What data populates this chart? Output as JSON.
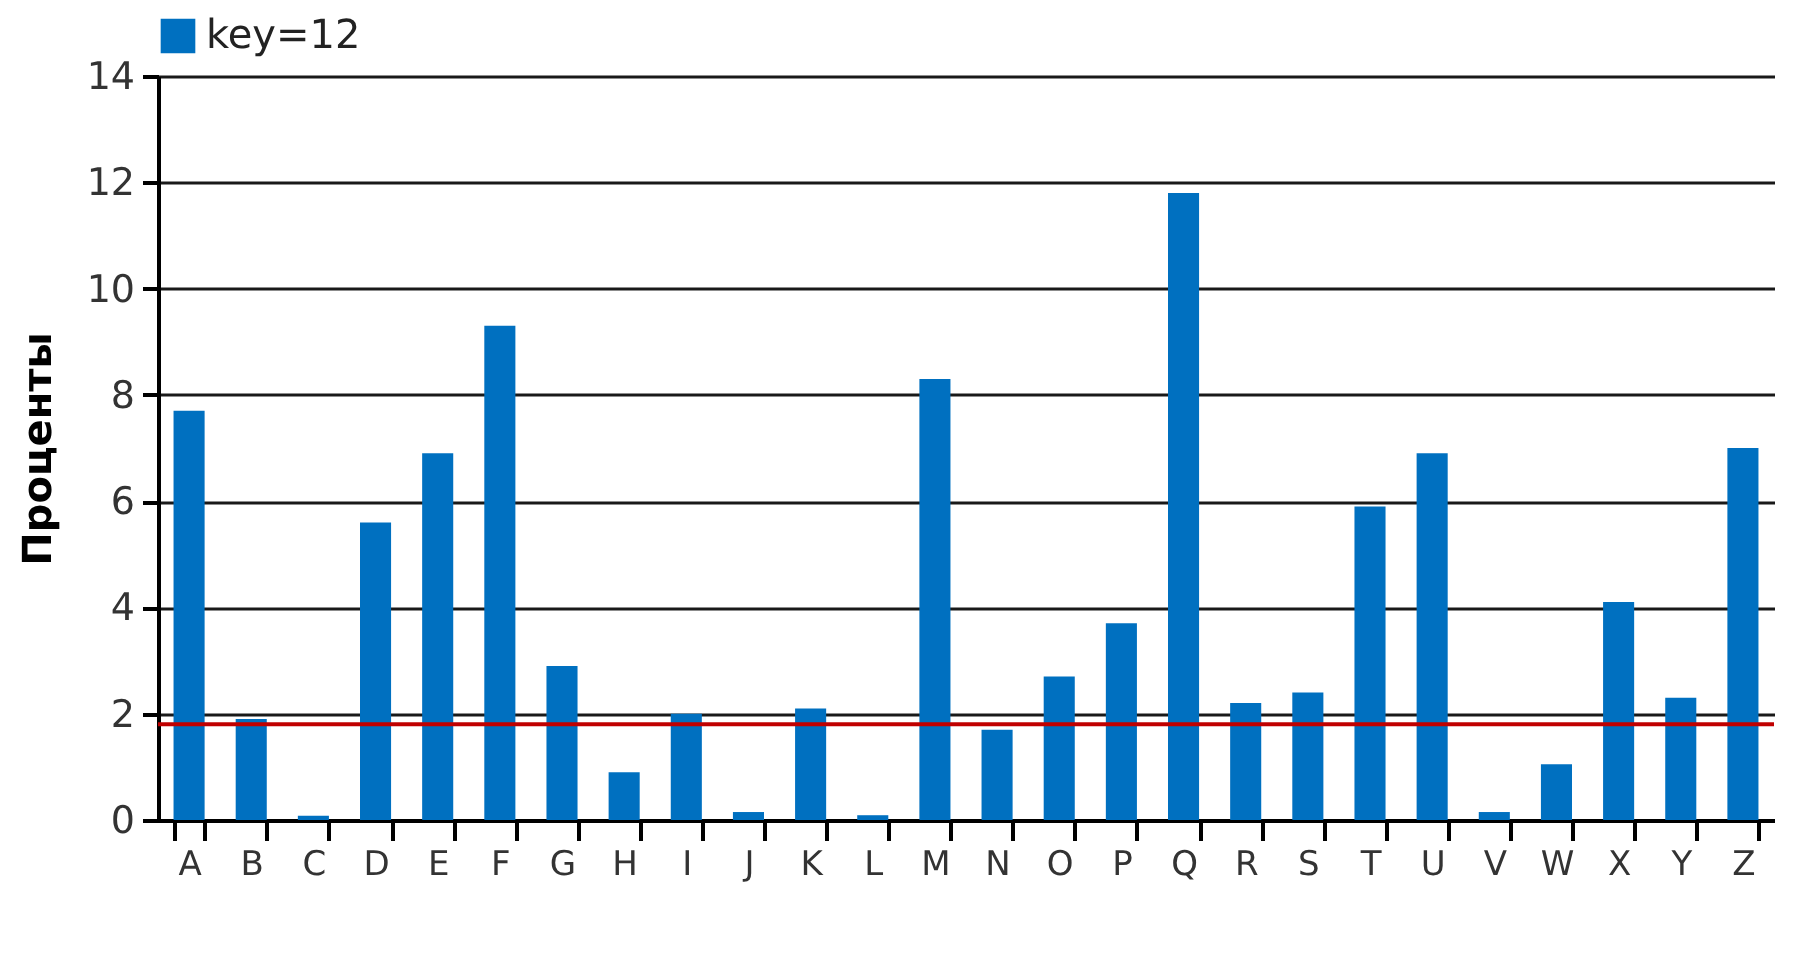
{
  "chart_data": {
    "type": "bar",
    "ylabel": "Проценты",
    "categories": [
      "A",
      "B",
      "C",
      "D",
      "E",
      "F",
      "G",
      "H",
      "I",
      "J",
      "K",
      "L",
      "M",
      "N",
      "O",
      "P",
      "Q",
      "R",
      "S",
      "T",
      "U",
      "V",
      "W",
      "X",
      "Y",
      "Z"
    ],
    "series": [
      {
        "name": "key=12",
        "color": "#0070c0",
        "values": [
          7.7,
          1.9,
          0.08,
          5.6,
          6.9,
          9.3,
          2.9,
          0.9,
          2.0,
          0.15,
          2.1,
          0.09,
          8.3,
          1.7,
          2.7,
          3.7,
          11.8,
          2.2,
          2.4,
          5.9,
          6.9,
          0.15,
          1.05,
          4.1,
          2.3,
          7.0
        ]
      }
    ],
    "ylim": [
      0,
      14
    ],
    "yticks": [
      0,
      2,
      4,
      6,
      8,
      10,
      12,
      14
    ],
    "grid": "y",
    "legend": "top",
    "ref_lines": [
      {
        "axis": "y",
        "value": 1.8,
        "color": "#c00000"
      }
    ]
  }
}
